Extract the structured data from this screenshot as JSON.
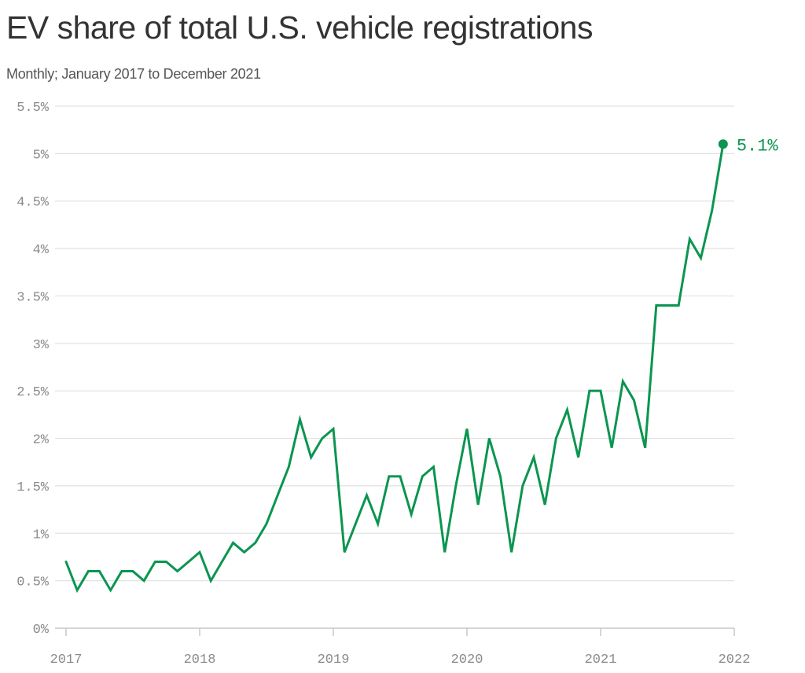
{
  "colors": {
    "series": "#0b9550",
    "grid": "#e2e2e2",
    "axis": "#c8c8c8",
    "tick_text": "#8a8a8a",
    "title": "#333333"
  },
  "chart_data": {
    "type": "line",
    "title": "EV share of total U.S. vehicle registrations",
    "subtitle": "Monthly; January 2017 to December 2021",
    "xlabel": "",
    "ylabel": "",
    "ylim": [
      0,
      5.5
    ],
    "xlim": [
      2017,
      2022
    ],
    "y_ticks": [
      {
        "value": 0,
        "label": "0%"
      },
      {
        "value": 0.5,
        "label": "0.5%"
      },
      {
        "value": 1,
        "label": "1%"
      },
      {
        "value": 1.5,
        "label": "1.5%"
      },
      {
        "value": 2,
        "label": "2%"
      },
      {
        "value": 2.5,
        "label": "2.5%"
      },
      {
        "value": 3,
        "label": "3%"
      },
      {
        "value": 3.5,
        "label": "3.5%"
      },
      {
        "value": 4,
        "label": "4%"
      },
      {
        "value": 4.5,
        "label": "4.5%"
      },
      {
        "value": 5,
        "label": "5%"
      },
      {
        "value": 5.5,
        "label": "5.5%"
      }
    ],
    "x_ticks": [
      {
        "value": 2017,
        "label": "2017"
      },
      {
        "value": 2018,
        "label": "2018"
      },
      {
        "value": 2019,
        "label": "2019"
      },
      {
        "value": 2020,
        "label": "2020"
      },
      {
        "value": 2021,
        "label": "2021"
      },
      {
        "value": 2022,
        "label": "2022"
      }
    ],
    "series": [
      {
        "name": "EV share",
        "unit": "%",
        "start": "2017-01",
        "values": [
          0.7,
          0.4,
          0.6,
          0.6,
          0.4,
          0.6,
          0.6,
          0.5,
          0.7,
          0.7,
          0.6,
          0.7,
          0.8,
          0.5,
          0.7,
          0.9,
          0.8,
          0.9,
          1.1,
          1.4,
          1.7,
          2.2,
          1.8,
          2.0,
          2.1,
          0.8,
          1.1,
          1.4,
          1.1,
          1.6,
          1.6,
          1.2,
          1.6,
          1.7,
          0.8,
          1.5,
          2.1,
          1.3,
          2.0,
          1.6,
          0.8,
          1.5,
          1.8,
          1.3,
          2.0,
          2.3,
          1.8,
          2.5,
          2.5,
          1.9,
          2.6,
          2.4,
          1.9,
          3.4,
          3.4,
          3.4,
          4.1,
          3.9,
          4.4,
          5.1
        ]
      }
    ],
    "annotations": [
      {
        "label": "5.1%",
        "target": "last-point"
      }
    ]
  }
}
